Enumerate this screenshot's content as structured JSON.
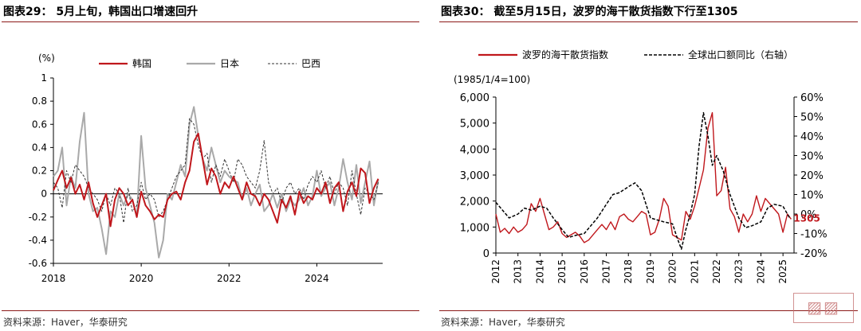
{
  "panels": [
    {
      "title": "图表29： 5月上旬，韩国出口增速回升",
      "source": "资料来源：Haver，华泰研究"
    },
    {
      "title": "图表30： 截至5月15日，波罗的海干散货指数下行至1305",
      "source": "资料来源：Haver，华泰研究"
    }
  ],
  "chart_data": [
    {
      "type": "line",
      "unit_label": "(%)",
      "ylim": [
        -0.6,
        1.0
      ],
      "yticks": [
        "1",
        "0.8",
        "0.6",
        "0.4",
        "0.2",
        "0",
        "-0.2",
        "-0.4",
        "-0.6"
      ],
      "xlim": [
        2018.0,
        2025.5
      ],
      "xticks": [
        "2018",
        "2020",
        "2022",
        "2024"
      ],
      "legend_position": "top",
      "series": [
        {
          "name": "韩国",
          "color": "#c0171c",
          "style": "solid",
          "x": [
            2018.0,
            2018.1,
            2018.2,
            2018.3,
            2018.4,
            2018.5,
            2018.6,
            2018.7,
            2018.8,
            2018.9,
            2019.0,
            2019.1,
            2019.2,
            2019.3,
            2019.4,
            2019.5,
            2019.6,
            2019.7,
            2019.8,
            2019.9,
            2020.0,
            2020.1,
            2020.2,
            2020.3,
            2020.4,
            2020.5,
            2020.6,
            2020.7,
            2020.8,
            2020.9,
            2021.0,
            2021.1,
            2021.2,
            2021.3,
            2021.4,
            2021.5,
            2021.6,
            2021.7,
            2021.8,
            2021.9,
            2022.0,
            2022.1,
            2022.2,
            2022.3,
            2022.4,
            2022.5,
            2022.6,
            2022.7,
            2022.8,
            2022.9,
            2023.0,
            2023.1,
            2023.2,
            2023.3,
            2023.4,
            2023.5,
            2023.6,
            2023.7,
            2023.8,
            2023.9,
            2024.0,
            2024.1,
            2024.2,
            2024.3,
            2024.4,
            2024.5,
            2024.6,
            2024.7,
            2024.8,
            2024.9,
            2025.0,
            2025.1,
            2025.2,
            2025.3,
            2025.4
          ],
          "y": [
            0.03,
            0.12,
            0.2,
            0.05,
            0.14,
            0.0,
            0.08,
            -0.05,
            0.1,
            -0.08,
            -0.2,
            -0.1,
            0.0,
            -0.28,
            -0.05,
            0.05,
            0.0,
            -0.1,
            -0.05,
            -0.2,
            0.02,
            -0.1,
            -0.15,
            -0.22,
            -0.18,
            -0.2,
            -0.05,
            0.0,
            0.02,
            -0.05,
            0.1,
            0.2,
            0.45,
            0.52,
            0.3,
            0.08,
            0.22,
            0.15,
            0.0,
            0.1,
            0.05,
            0.15,
            0.05,
            -0.05,
            0.1,
            0.0,
            -0.02,
            -0.1,
            0.0,
            -0.05,
            -0.15,
            -0.25,
            -0.05,
            -0.12,
            -0.02,
            -0.18,
            0.02,
            -0.08,
            -0.02,
            -0.05,
            0.05,
            0.0,
            0.1,
            -0.08,
            0.05,
            0.1,
            -0.15,
            0.02,
            0.1,
            -0.02,
            0.22,
            0.18,
            -0.08,
            0.05,
            0.13
          ]
        },
        {
          "name": "日本",
          "color": "#a9a9a9",
          "style": "solid",
          "x": [
            2018.0,
            2018.1,
            2018.2,
            2018.3,
            2018.4,
            2018.5,
            2018.6,
            2018.7,
            2018.8,
            2018.9,
            2019.0,
            2019.1,
            2019.2,
            2019.3,
            2019.4,
            2019.5,
            2019.6,
            2019.7,
            2019.8,
            2019.9,
            2020.0,
            2020.1,
            2020.2,
            2020.3,
            2020.4,
            2020.5,
            2020.6,
            2020.7,
            2020.8,
            2020.9,
            2021.0,
            2021.1,
            2021.2,
            2021.3,
            2021.4,
            2021.5,
            2021.6,
            2021.7,
            2021.8,
            2021.9,
            2022.0,
            2022.1,
            2022.2,
            2022.3,
            2022.4,
            2022.5,
            2022.6,
            2022.7,
            2022.8,
            2022.9,
            2023.0,
            2023.1,
            2023.2,
            2023.3,
            2023.4,
            2023.5,
            2023.6,
            2023.7,
            2023.8,
            2023.9,
            2024.0,
            2024.1,
            2024.2,
            2024.3,
            2024.4,
            2024.5,
            2024.6,
            2024.7,
            2024.8,
            2024.9,
            2025.0,
            2025.1,
            2025.2,
            2025.3,
            2025.4
          ],
          "y": [
            0.15,
            0.2,
            0.4,
            -0.1,
            0.15,
            0.05,
            0.45,
            0.7,
            0.0,
            -0.15,
            -0.12,
            -0.3,
            -0.52,
            -0.15,
            -0.2,
            0.0,
            -0.1,
            0.0,
            -0.05,
            -0.2,
            0.5,
            0.05,
            -0.1,
            -0.25,
            -0.55,
            -0.4,
            0.0,
            -0.05,
            0.1,
            0.25,
            0.15,
            0.6,
            0.75,
            0.5,
            0.3,
            0.2,
            0.4,
            0.25,
            0.1,
            0.2,
            0.15,
            0.12,
            0.1,
            -0.05,
            0.05,
            -0.1,
            0.0,
            0.08,
            -0.15,
            -0.1,
            0.0,
            -0.12,
            0.0,
            -0.15,
            -0.05,
            -0.1,
            -0.05,
            0.05,
            -0.1,
            -0.02,
            0.2,
            -0.02,
            0.05,
            0.1,
            -0.1,
            0.05,
            0.3,
            0.1,
            -0.05,
            0.25,
            -0.08,
            0.1,
            0.28,
            -0.1,
            0.12
          ]
        },
        {
          "name": "巴西",
          "color": "#333333",
          "style": "dashed",
          "x": [
            2018.0,
            2018.1,
            2018.2,
            2018.3,
            2018.4,
            2018.5,
            2018.6,
            2018.7,
            2018.8,
            2018.9,
            2019.0,
            2019.1,
            2019.2,
            2019.3,
            2019.4,
            2019.5,
            2019.6,
            2019.7,
            2019.8,
            2019.9,
            2020.0,
            2020.1,
            2020.2,
            2020.3,
            2020.4,
            2020.5,
            2020.6,
            2020.7,
            2020.8,
            2020.9,
            2021.0,
            2021.1,
            2021.2,
            2021.3,
            2021.4,
            2021.5,
            2021.6,
            2021.7,
            2021.8,
            2021.9,
            2022.0,
            2022.1,
            2022.2,
            2022.3,
            2022.4,
            2022.5,
            2022.6,
            2022.7,
            2022.8,
            2022.9,
            2023.0,
            2023.1,
            2023.2,
            2023.3,
            2023.4,
            2023.5,
            2023.6,
            2023.7,
            2023.8,
            2023.9,
            2024.0,
            2024.1,
            2024.2,
            2024.3,
            2024.4,
            2024.5,
            2024.6,
            2024.7,
            2024.8,
            2024.9,
            2025.0,
            2025.1,
            2025.2,
            2025.3,
            2025.4
          ],
          "y": [
            0.1,
            0.05,
            -0.12,
            0.2,
            0.1,
            0.25,
            0.2,
            0.15,
            0.05,
            0.0,
            -0.05,
            -0.15,
            0.0,
            -0.1,
            0.05,
            0.0,
            -0.25,
            0.05,
            -0.15,
            -0.1,
            0.1,
            -0.05,
            0.0,
            -0.05,
            -0.2,
            -0.15,
            -0.05,
            0.05,
            0.15,
            0.2,
            0.25,
            0.65,
            0.6,
            0.42,
            0.3,
            0.35,
            0.1,
            0.25,
            0.15,
            0.3,
            0.2,
            0.1,
            0.3,
            0.25,
            0.15,
            0.1,
            0.05,
            0.2,
            0.46,
            0.1,
            0.0,
            0.05,
            -0.08,
            0.05,
            0.1,
            0.0,
            0.05,
            -0.05,
            0.08,
            0.15,
            0.1,
            0.2,
            0.05,
            0.15,
            0.0,
            0.1,
            0.05,
            -0.1,
            0.2,
            0.0,
            -0.18,
            0.05,
            0.0,
            -0.05,
            0.1
          ]
        }
      ]
    },
    {
      "type": "line",
      "unit_label": "(1985/1/4=100)",
      "ylim_left": [
        0,
        6000
      ],
      "yticks_left": [
        "6,000",
        "5,000",
        "4,000",
        "3,000",
        "2,000",
        "1,000",
        "0"
      ],
      "ylim_right": [
        -20,
        60
      ],
      "yticks_right": [
        "60%",
        "50%",
        "40%",
        "30%",
        "20%",
        "10%",
        "0%",
        "-10%",
        "-20%"
      ],
      "xlim": [
        2012.0,
        2025.5
      ],
      "xticks": [
        "2012",
        "2013",
        "2014",
        "2015",
        "2016",
        "2017",
        "2018",
        "2019",
        "2020",
        "2021",
        "2022",
        "2023",
        "2024",
        "2025"
      ],
      "legend_position": "top",
      "end_label": "1305",
      "series": [
        {
          "name": "波罗的海干散货指数",
          "axis": "left",
          "color": "#c0171c",
          "style": "solid",
          "x": [
            2012.0,
            2012.2,
            2012.4,
            2012.6,
            2012.8,
            2013.0,
            2013.2,
            2013.4,
            2013.6,
            2013.8,
            2014.0,
            2014.2,
            2014.4,
            2014.6,
            2014.8,
            2015.0,
            2015.2,
            2015.4,
            2015.6,
            2015.8,
            2016.0,
            2016.2,
            2016.4,
            2016.6,
            2016.8,
            2017.0,
            2017.2,
            2017.4,
            2017.6,
            2017.8,
            2018.0,
            2018.2,
            2018.4,
            2018.6,
            2018.8,
            2019.0,
            2019.2,
            2019.4,
            2019.6,
            2019.8,
            2020.0,
            2020.2,
            2020.4,
            2020.6,
            2020.8,
            2021.0,
            2021.2,
            2021.4,
            2021.6,
            2021.8,
            2022.0,
            2022.2,
            2022.4,
            2022.6,
            2022.8,
            2023.0,
            2023.2,
            2023.4,
            2023.6,
            2023.8,
            2024.0,
            2024.2,
            2024.4,
            2024.6,
            2024.8,
            2025.0,
            2025.2,
            2025.37
          ],
          "y": [
            1500,
            800,
            950,
            750,
            1000,
            800,
            900,
            1100,
            1900,
            1600,
            2100,
            1500,
            900,
            1000,
            1200,
            750,
            600,
            700,
            800,
            650,
            400,
            500,
            700,
            900,
            1100,
            900,
            1200,
            900,
            1400,
            1500,
            1300,
            1200,
            1400,
            1600,
            1500,
            700,
            800,
            1300,
            2100,
            1800,
            700,
            600,
            500,
            1600,
            1300,
            1800,
            2500,
            3200,
            4800,
            5400,
            2200,
            2400,
            3300,
            1700,
            1400,
            800,
            1500,
            1200,
            1500,
            2200,
            1600,
            2100,
            1900,
            1700,
            1500,
            800,
            1500,
            1305
          ]
        },
        {
          "name": "全球出口额同比（右轴）",
          "axis": "right",
          "color": "#000000",
          "style": "dashed",
          "x": [
            2012.0,
            2012.3,
            2012.6,
            2013.0,
            2013.3,
            2013.6,
            2014.0,
            2014.3,
            2014.6,
            2015.0,
            2015.3,
            2015.6,
            2016.0,
            2016.3,
            2016.6,
            2017.0,
            2017.3,
            2017.6,
            2018.0,
            2018.3,
            2018.6,
            2019.0,
            2019.3,
            2019.6,
            2020.0,
            2020.2,
            2020.4,
            2020.6,
            2020.8,
            2021.0,
            2021.2,
            2021.4,
            2021.6,
            2021.8,
            2022.0,
            2022.3,
            2022.6,
            2023.0,
            2023.3,
            2023.6,
            2024.0,
            2024.3,
            2024.6,
            2025.0,
            2025.3
          ],
          "y": [
            6,
            2,
            -2,
            0,
            3,
            2,
            4,
            3,
            -2,
            -8,
            -12,
            -11,
            -10,
            -6,
            -2,
            5,
            10,
            11,
            14,
            16,
            12,
            -2,
            -3,
            -4,
            -5,
            -12,
            -18,
            -8,
            0,
            10,
            35,
            52,
            40,
            25,
            30,
            22,
            10,
            -2,
            -7,
            -6,
            -4,
            3,
            5,
            4,
            -2
          ]
        }
      ]
    }
  ]
}
